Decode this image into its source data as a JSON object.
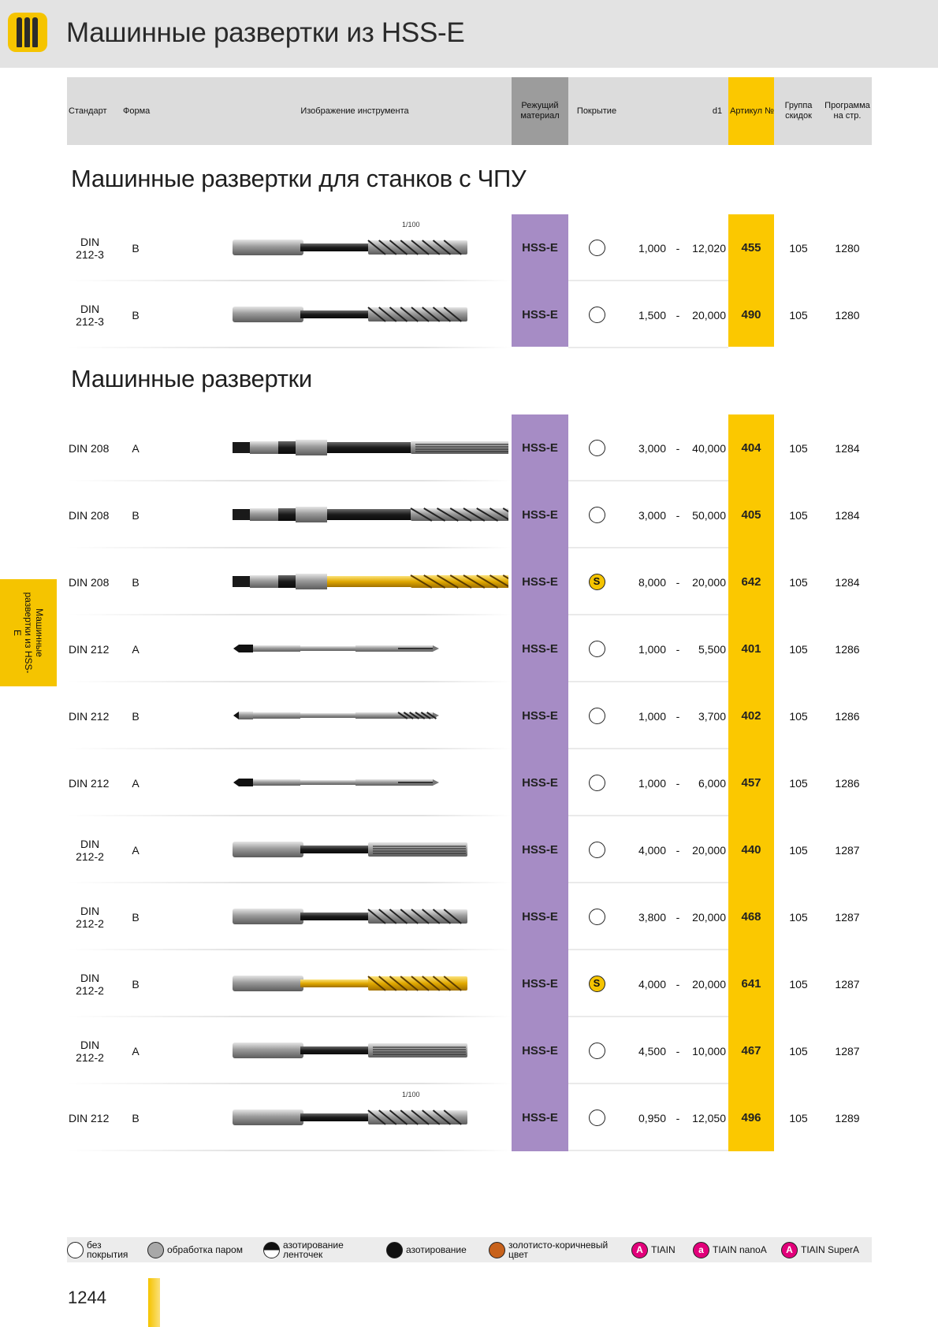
{
  "page": {
    "title": "Машинные развертки из HSS-E",
    "page_number": "1244",
    "side_tab": "Машинные развертки из HSS-E"
  },
  "header": {
    "standard": "Стандарт",
    "form": "Форма",
    "image": "Изображение инструмента",
    "material": "Режущий материал",
    "coating": "Покрытие",
    "d1": "d1",
    "article": "Артикул №",
    "group": "Группа скидок",
    "program": "Программа на стр."
  },
  "sections": [
    {
      "title": "Машинные развертки для станков с ЧПУ",
      "rows": [
        {
          "standard": "DIN 212-3",
          "form": "B",
          "tool": "straight-spiral",
          "tolerance_mark": "1/100",
          "material": "HSS-E",
          "coating": "none",
          "d1_from": "1,000",
          "d1_to": "12,020",
          "article": "455",
          "group": "105",
          "page": "1280"
        },
        {
          "standard": "DIN 212-3",
          "form": "B",
          "tool": "straight-spiral",
          "tolerance_mark": "",
          "material": "HSS-E",
          "coating": "none",
          "d1_from": "1,500",
          "d1_to": "20,000",
          "article": "490",
          "group": "105",
          "page": "1280"
        }
      ]
    },
    {
      "title": "Машинные развертки",
      "rows": [
        {
          "standard": "DIN 208",
          "form": "A",
          "tool": "taper-straight",
          "tolerance_mark": "",
          "material": "HSS-E",
          "coating": "none",
          "d1_from": "3,000",
          "d1_to": "40,000",
          "article": "404",
          "group": "105",
          "page": "1284"
        },
        {
          "standard": "DIN 208",
          "form": "B",
          "tool": "taper-spiral",
          "tolerance_mark": "",
          "material": "HSS-E",
          "coating": "none",
          "d1_from": "3,000",
          "d1_to": "50,000",
          "article": "405",
          "group": "105",
          "page": "1284"
        },
        {
          "standard": "DIN 208",
          "form": "B",
          "tool": "taper-gold",
          "tolerance_mark": "",
          "material": "HSS-E",
          "coating": "S",
          "d1_from": "8,000",
          "d1_to": "20,000",
          "article": "642",
          "group": "105",
          "page": "1284"
        },
        {
          "standard": "DIN 212",
          "form": "A",
          "tool": "thin-straight",
          "tolerance_mark": "",
          "material": "HSS-E",
          "coating": "none",
          "d1_from": "1,000",
          "d1_to": "5,500",
          "article": "401",
          "group": "105",
          "page": "1286"
        },
        {
          "standard": "DIN 212",
          "form": "B",
          "tool": "thin-spiral",
          "tolerance_mark": "",
          "material": "HSS-E",
          "coating": "none",
          "d1_from": "1,000",
          "d1_to": "3,700",
          "article": "402",
          "group": "105",
          "page": "1286"
        },
        {
          "standard": "DIN 212",
          "form": "A",
          "tool": "thin-straight",
          "tolerance_mark": "",
          "material": "HSS-E",
          "coating": "none",
          "d1_from": "1,000",
          "d1_to": "6,000",
          "article": "457",
          "group": "105",
          "page": "1286"
        },
        {
          "standard": "DIN 212-2",
          "form": "A",
          "tool": "straight-straight",
          "tolerance_mark": "",
          "material": "HSS-E",
          "coating": "none",
          "d1_from": "4,000",
          "d1_to": "20,000",
          "article": "440",
          "group": "105",
          "page": "1287"
        },
        {
          "standard": "DIN 212-2",
          "form": "B",
          "tool": "straight-spiral",
          "tolerance_mark": "",
          "material": "HSS-E",
          "coating": "none",
          "d1_from": "3,800",
          "d1_to": "20,000",
          "article": "468",
          "group": "105",
          "page": "1287"
        },
        {
          "standard": "DIN 212-2",
          "form": "B",
          "tool": "straight-gold",
          "tolerance_mark": "",
          "material": "HSS-E",
          "coating": "S",
          "d1_from": "4,000",
          "d1_to": "20,000",
          "article": "641",
          "group": "105",
          "page": "1287"
        },
        {
          "standard": "DIN 212-2",
          "form": "A",
          "tool": "straight-straight",
          "tolerance_mark": "",
          "material": "HSS-E",
          "coating": "none",
          "d1_from": "4,500",
          "d1_to": "10,000",
          "article": "467",
          "group": "105",
          "page": "1287"
        },
        {
          "standard": "DIN 212",
          "form": "B",
          "tool": "straight-spiral",
          "tolerance_mark": "1/100",
          "material": "HSS-E",
          "coating": "none",
          "d1_from": "0,950",
          "d1_to": "12,050",
          "article": "496",
          "group": "105",
          "page": "1289"
        }
      ]
    }
  ],
  "legend": [
    {
      "label": "без покрытия",
      "symbol": "white-ring"
    },
    {
      "label": "обработка паром",
      "symbol": "grey-dot"
    },
    {
      "label": "азотирование ленточек",
      "symbol": "half-black"
    },
    {
      "label": "азотирование",
      "symbol": "black-dot"
    },
    {
      "label": "золотисто-коричневый цвет",
      "symbol": "brown-dot"
    },
    {
      "label": "TIAIN",
      "symbol": "letter",
      "letter": "A",
      "color": "#e2007a"
    },
    {
      "label": "TIAIN nanoA",
      "symbol": "letter",
      "letter": "a",
      "color": "#e2007a"
    },
    {
      "label": "TIAIN SuperA",
      "symbol": "letter",
      "letter": "A",
      "color": "#e2007a"
    }
  ],
  "colors": {
    "material_column": "#a68cc5",
    "article_column": "#fbc800",
    "accent": "#f5c400"
  }
}
